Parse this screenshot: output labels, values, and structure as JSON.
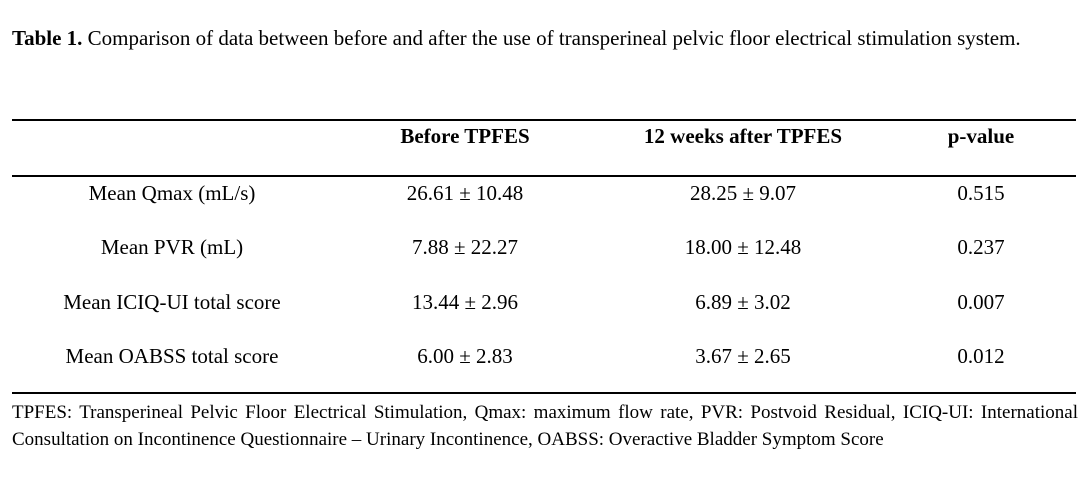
{
  "caption": {
    "label": "Table 1.",
    "text": " Comparison of data between before and after the use of  transperineal pelvic floor electrical stimulation system."
  },
  "table": {
    "headers": [
      "",
      "Before TPFES",
      "12 weeks after TPFES",
      "p-value"
    ],
    "rows": [
      [
        "Mean Qmax (mL/s)",
        "26.61 ± 10.48",
        "28.25 ± 9.07",
        "0.515"
      ],
      [
        "Mean PVR (mL)",
        "7.88 ± 22.27",
        "18.00 ± 12.48",
        "0.237"
      ],
      [
        "Mean ICIQ-UI total score",
        "13.44 ± 2.96",
        "6.89 ± 3.02",
        "0.007"
      ],
      [
        "Mean OABSS total score",
        "6.00 ± 2.83",
        "3.67 ± 2.65",
        "0.012"
      ]
    ]
  },
  "footnote": "TPFES: Transperineal Pelvic Floor Electrical Stimulation, Qmax: maximum flow rate, PVR: Postvoid Residual, ICIQ-UI: International Consultation on Incontinence Questionnaire – Urinary Incontinence, OABSS: Overactive Bladder Symptom Score"
}
